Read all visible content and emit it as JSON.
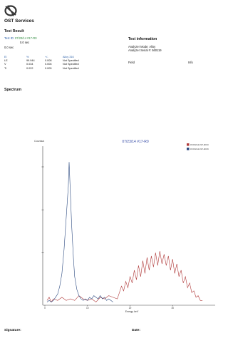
{
  "header": {
    "company_name": "OST Services"
  },
  "test_result": {
    "heading": "Test Result",
    "id_label": "Test ID:",
    "id_value": "07/23/14 #17-R0",
    "duration_1": "0.0 sec",
    "duration_2": "0.0 sec"
  },
  "elements_table": {
    "headers": [
      "El",
      "%",
      "+/-",
      "Alloy 316"
    ],
    "rows": [
      {
        "el": "LE",
        "pct": "99.944",
        "err": "0.008",
        "spec": "Not Specified"
      },
      {
        "el": "V",
        "pct": "0.034",
        "err": "0.006",
        "spec": "Not Specified"
      },
      {
        "el": "Ti",
        "pct": "0.022",
        "err": "0.005",
        "spec": "Not Specified"
      }
    ]
  },
  "test_information": {
    "heading": "Test information",
    "analyzer_mode": "Analyzer Mode: Alloy",
    "analyzer_serial": "Analyzer Serial #: 560119",
    "field_label": "Field",
    "info_label": "Info"
  },
  "spectrum": {
    "heading": "Spectrum"
  },
  "chart_data": {
    "type": "line",
    "title": "07/23/14 #17-R0",
    "ylabel": "Counts/s",
    "xlabel": "Energy keV",
    "x_ticks": [
      "0",
      "10",
      "20",
      "30"
    ],
    "xlim": [
      -0.5,
      40
    ],
    "ylim": [
      0,
      100
    ],
    "legend_position": "top-right",
    "series": [
      {
        "name": "07/23/14 #17-R0:0",
        "color": "#b03a3a",
        "points": [
          [
            0.5,
            3
          ],
          [
            1,
            5
          ],
          [
            1.5,
            2
          ],
          [
            2,
            4
          ],
          [
            3,
            3
          ],
          [
            4,
            5
          ],
          [
            5,
            3
          ],
          [
            6,
            4
          ],
          [
            7,
            3
          ],
          [
            8,
            6
          ],
          [
            9,
            4
          ],
          [
            10,
            3
          ],
          [
            11,
            4
          ],
          [
            12,
            2
          ],
          [
            13,
            5
          ],
          [
            14,
            4
          ],
          [
            15,
            6
          ],
          [
            16,
            5
          ],
          [
            17,
            4
          ],
          [
            17.5,
            8
          ],
          [
            18,
            12
          ],
          [
            18.5,
            9
          ],
          [
            19,
            15
          ],
          [
            19.5,
            11
          ],
          [
            20,
            18
          ],
          [
            20.5,
            14
          ],
          [
            21,
            22
          ],
          [
            21.5,
            16
          ],
          [
            22,
            25
          ],
          [
            22.5,
            18
          ],
          [
            23,
            28
          ],
          [
            23.5,
            20
          ],
          [
            24,
            30
          ],
          [
            24.5,
            22
          ],
          [
            25,
            31
          ],
          [
            25.5,
            24
          ],
          [
            26,
            33
          ],
          [
            26.5,
            25
          ],
          [
            27,
            34
          ],
          [
            27.5,
            26
          ],
          [
            28,
            32
          ],
          [
            28.5,
            25
          ],
          [
            29,
            31
          ],
          [
            29.5,
            22
          ],
          [
            30,
            29
          ],
          [
            30.5,
            20
          ],
          [
            31,
            26
          ],
          [
            31.5,
            18
          ],
          [
            32,
            22
          ],
          [
            32.5,
            14
          ],
          [
            33,
            18
          ],
          [
            33.5,
            11
          ],
          [
            34,
            14
          ],
          [
            34.5,
            8
          ],
          [
            35,
            9
          ],
          [
            35.5,
            5
          ],
          [
            36,
            6
          ],
          [
            36.5,
            3
          ],
          [
            37,
            3
          ]
        ]
      },
      {
        "name": "07/23/14 #17-R0:8",
        "color": "#2c4a80",
        "points": [
          [
            0.5,
            2
          ],
          [
            1,
            3
          ],
          [
            1.5,
            2
          ],
          [
            2,
            3
          ],
          [
            2.5,
            5
          ],
          [
            3,
            7
          ],
          [
            3.5,
            12
          ],
          [
            4,
            20
          ],
          [
            4.5,
            35
          ],
          [
            5,
            55
          ],
          [
            5.5,
            75
          ],
          [
            5.7,
            90
          ],
          [
            6,
            70
          ],
          [
            6.3,
            50
          ],
          [
            6.7,
            30
          ],
          [
            7,
            18
          ],
          [
            7.5,
            10
          ],
          [
            8,
            6
          ],
          [
            8.5,
            4
          ],
          [
            9,
            3
          ],
          [
            9.5,
            4
          ],
          [
            10,
            3
          ],
          [
            10.5,
            5
          ],
          [
            11,
            4
          ],
          [
            11.5,
            6
          ],
          [
            12,
            5
          ],
          [
            12.5,
            4
          ],
          [
            13,
            6
          ],
          [
            13.5,
            4
          ],
          [
            14,
            5
          ],
          [
            14.5,
            3
          ],
          [
            15,
            4
          ],
          [
            15.5,
            3
          ],
          [
            16,
            2
          ]
        ]
      }
    ]
  },
  "footer": {
    "signature_label": "Signature:",
    "date_label": "Date:"
  },
  "colors": {
    "accent_green": "#2e8b3e",
    "accent_blue": "#2b5fa8",
    "chart_title_blue": "#3a4fa8"
  },
  "icons": {
    "logo": "ost-logo-icon"
  }
}
